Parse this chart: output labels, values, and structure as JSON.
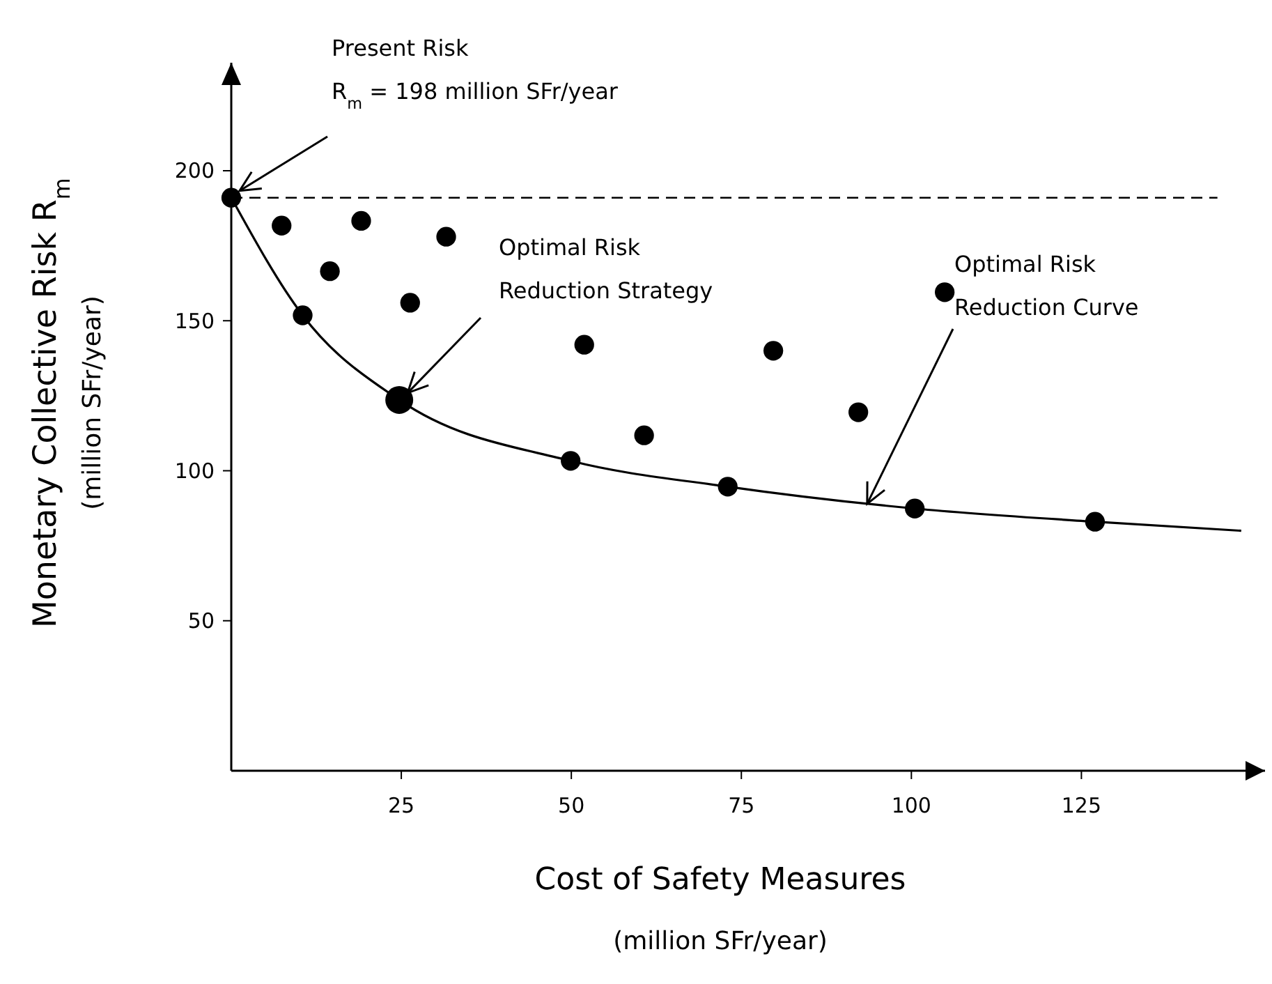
{
  "chart_data": {
    "type": "bubble",
    "xlabel": "Cost of Safety Measures\n(million SFr/year)",
    "ylabel": "Monetary Collective Risk R$_{m}$\n(million SFr/year)",
    "xlim": [
      0,
      152
    ],
    "ylim": [
      0,
      236
    ],
    "xticks": [
      25,
      50,
      75,
      100,
      125
    ],
    "yticks": [
      50,
      100,
      150,
      200
    ],
    "grid": false,
    "ref_lines": [
      {
        "axis": "y",
        "value": 191,
        "line_style": "dashed",
        "color": "#000000"
      }
    ],
    "series": [
      {
        "type": "line",
        "color": "#000000",
        "marker": "none",
        "line_style": "solid",
        "x": [
          0,
          10.5,
          24.7,
          49.9,
          73,
          100.5,
          127,
          148.5
        ],
        "values": [
          191,
          151.8,
          123.6,
          103.3,
          94.7,
          87.4,
          83,
          80
        ]
      },
      {
        "color": "#000000",
        "x": [
          0,
          7.4,
          19.1,
          31.6,
          14.5,
          26.3,
          10.5,
          51.9,
          24.7,
          60.7,
          49.9,
          73,
          104.9,
          79.7,
          92.2,
          100.5,
          127
        ],
        "values": [
          191,
          181.7,
          183.3,
          178,
          166.5,
          156,
          151.8,
          142,
          123.6,
          111.8,
          103.3,
          94.7,
          159.5,
          140,
          119.5,
          87.4,
          83
        ],
        "sizes": [
          0.5,
          0.5,
          0.5,
          0.5,
          0.5,
          0.5,
          0.5,
          0.5,
          1,
          0.5,
          0.5,
          0.5,
          0.5,
          0.5,
          0.5,
          0.5,
          0.5
        ]
      }
    ],
    "annotations": [
      {
        "text": "Present Risk\nR$_{m}$ = 198 million SFr/year",
        "x": 0,
        "y": 191
      },
      {
        "text": "Optimal Risk\nReduction Strategy",
        "x": 24.7,
        "y": 123.6
      },
      {
        "text": "Optimal Risk\nReduction Curve",
        "x": 93.5,
        "y": 89
      }
    ]
  }
}
